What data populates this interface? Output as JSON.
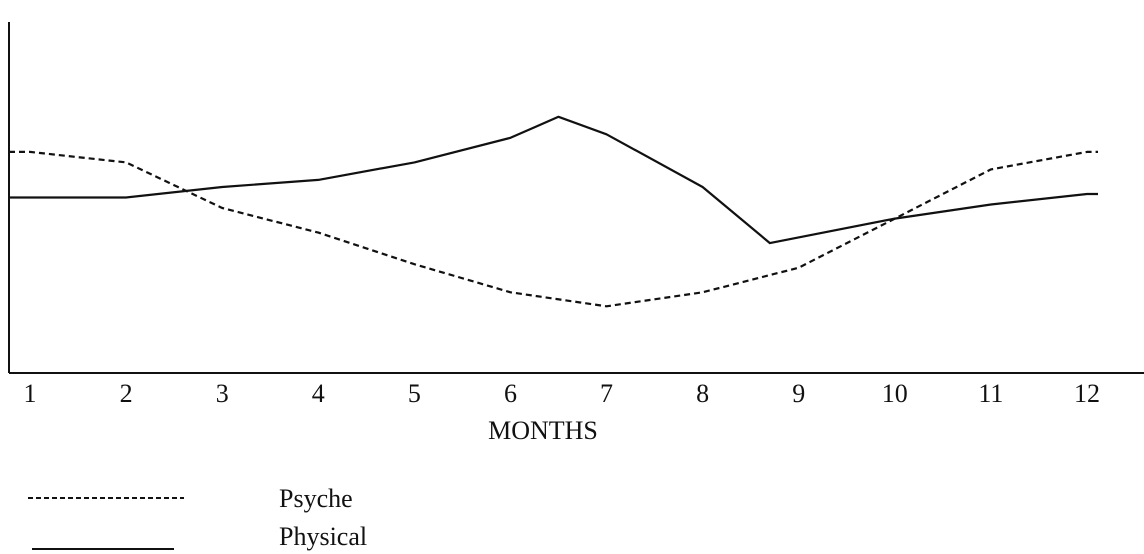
{
  "chart_data": {
    "type": "line",
    "title": "",
    "xlabel": "MONTHS",
    "ylabel": "",
    "x": [
      1,
      2,
      3,
      4,
      5,
      6,
      7,
      8,
      9,
      10,
      11,
      12
    ],
    "ylim": [
      0,
      100
    ],
    "grid": false,
    "legend_position": "bottom-left",
    "series": [
      {
        "name": "Psyche",
        "line_style": "dashed",
        "color": "#111111",
        "points": [
          [
            1,
            63
          ],
          [
            2,
            60
          ],
          [
            3,
            47
          ],
          [
            4,
            40
          ],
          [
            5,
            31
          ],
          [
            6,
            23
          ],
          [
            7,
            19
          ],
          [
            8,
            23
          ],
          [
            9,
            30
          ],
          [
            10,
            44
          ],
          [
            11,
            58
          ],
          [
            12,
            63
          ]
        ]
      },
      {
        "name": "Physical",
        "line_style": "solid",
        "color": "#111111",
        "points": [
          [
            1,
            50
          ],
          [
            2,
            50
          ],
          [
            3,
            53
          ],
          [
            4,
            55
          ],
          [
            5,
            60
          ],
          [
            6,
            67
          ],
          [
            6.5,
            73
          ],
          [
            7,
            68
          ],
          [
            8,
            53
          ],
          [
            8.7,
            37
          ],
          [
            10,
            44
          ],
          [
            11,
            48
          ],
          [
            12,
            51
          ]
        ]
      }
    ]
  }
}
